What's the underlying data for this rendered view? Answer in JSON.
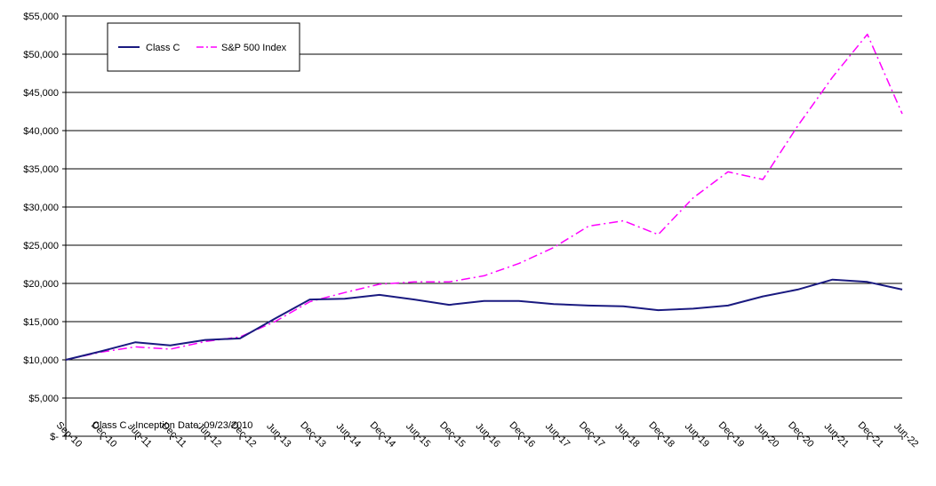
{
  "chart_data": {
    "type": "line",
    "title": "",
    "xlabel": "",
    "ylabel": "",
    "categories": [
      "Sep-10",
      "Dec-10",
      "Jun-11",
      "Dec-11",
      "Jun-12",
      "Dec-12",
      "Jun-13",
      "Dec-13",
      "Jun-14",
      "Dec-14",
      "Jun-15",
      "Dec-15",
      "Jun-16",
      "Dec-16",
      "Jun-17",
      "Dec-17",
      "Jun-18",
      "Dec-18",
      "Jun-19",
      "Dec-19",
      "Jun-20",
      "Dec-20",
      "Jun-21",
      "Dec-21",
      "Jun-22"
    ],
    "y_ticks": [
      0,
      5000,
      10000,
      15000,
      20000,
      25000,
      30000,
      35000,
      40000,
      45000,
      50000,
      55000
    ],
    "y_tick_labels": [
      "$-",
      "$5,000",
      "$10,000",
      "$15,000",
      "$20,000",
      "$25,000",
      "$30,000",
      "$35,000",
      "$40,000",
      "$45,000",
      "$50,000",
      "$55,000"
    ],
    "ylim": [
      0,
      55000
    ],
    "grid": "horizontal",
    "legend_position": "top-left",
    "series": [
      {
        "name": "Class C",
        "color": "#1a1a80",
        "dash": "solid",
        "values": [
          10000,
          11100,
          12300,
          11900,
          12600,
          12800,
          15400,
          17900,
          18000,
          18500,
          17900,
          17200,
          17700,
          17700,
          17300,
          17100,
          17000,
          16500,
          16700,
          17100,
          18300,
          19200,
          20500,
          20200,
          19200
        ]
      },
      {
        "name": "S&P 500 Index",
        "color": "#ff00ff",
        "dash": "dash-dot",
        "values": [
          10000,
          11000,
          11700,
          11400,
          12400,
          13000,
          15000,
          17600,
          18800,
          19900,
          20200,
          20200,
          21000,
          22600,
          24700,
          27500,
          28200,
          26400,
          31200,
          34600,
          33600,
          40600,
          47000,
          52600,
          42200
        ]
      }
    ],
    "annotation": "Class C - Inception Date:  09/23/2010"
  }
}
